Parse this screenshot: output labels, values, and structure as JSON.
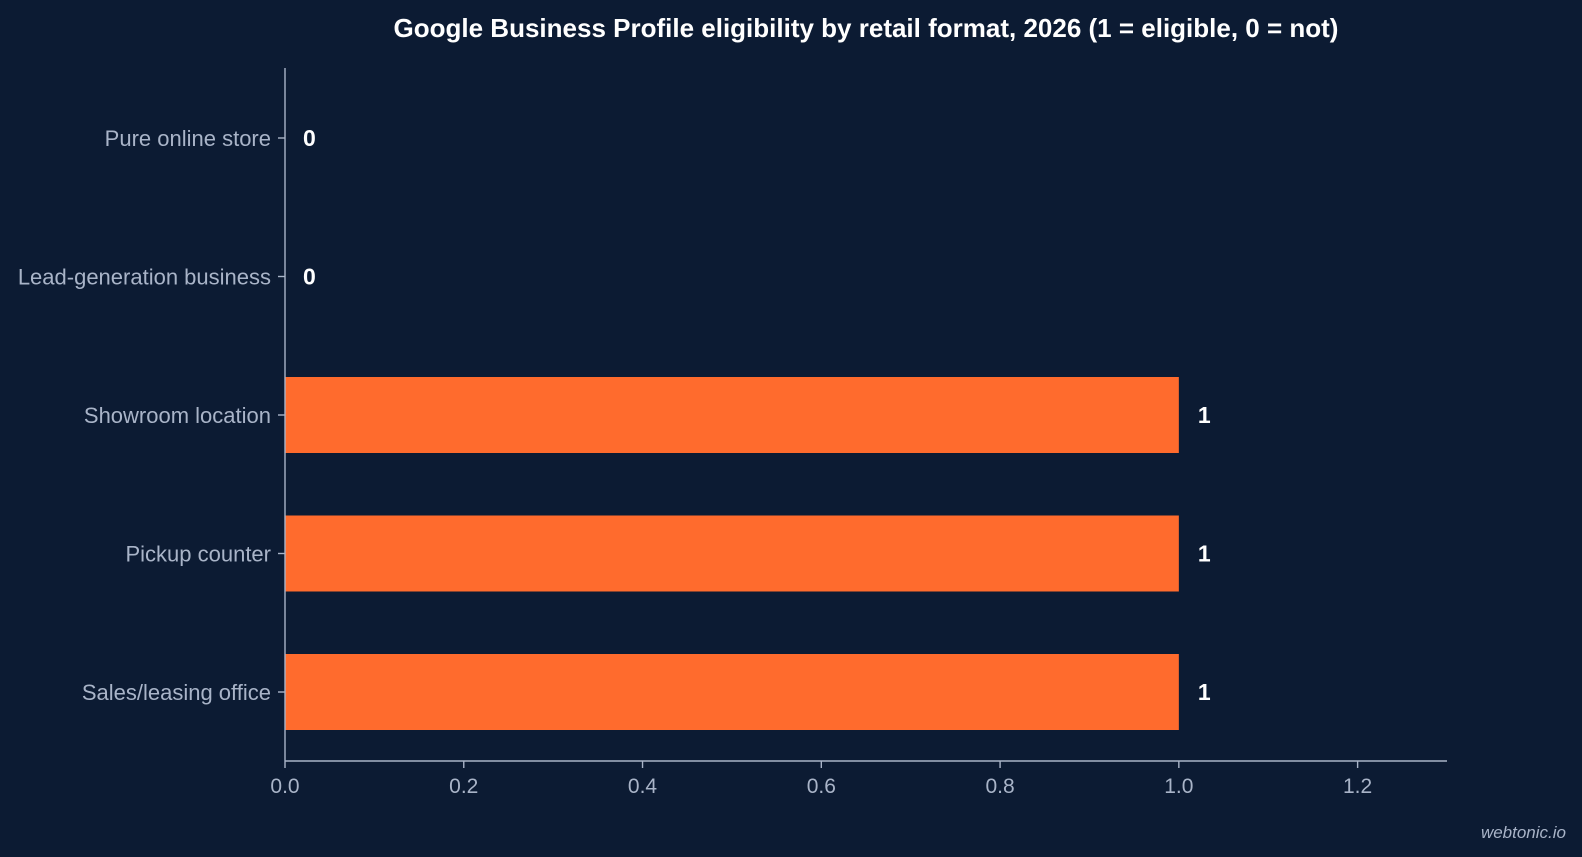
{
  "chart_data": {
    "type": "bar",
    "orientation": "horizontal",
    "title": "Google Business Profile eligibility by retail format, 2026 (1 = eligible, 0 = not)",
    "categories": [
      "Pure online store",
      "Lead-generation business",
      "Showroom location",
      "Pickup counter",
      "Sales/leasing office"
    ],
    "values": [
      0,
      0,
      1,
      1,
      1
    ],
    "value_labels": [
      "0",
      "0",
      "1",
      "1",
      "1"
    ],
    "xlim": [
      0,
      1.3
    ],
    "xticks": [
      0.0,
      0.2,
      0.4,
      0.6,
      0.8,
      1.0,
      1.2
    ],
    "xtick_labels": [
      "0.0",
      "0.2",
      "0.4",
      "0.6",
      "0.8",
      "1.0",
      "1.2"
    ],
    "xlabel": "",
    "ylabel": "",
    "grid": false,
    "bar_color": "#ff6b2d",
    "background_color": "#0c1b33"
  },
  "watermark": "webtonic.io"
}
